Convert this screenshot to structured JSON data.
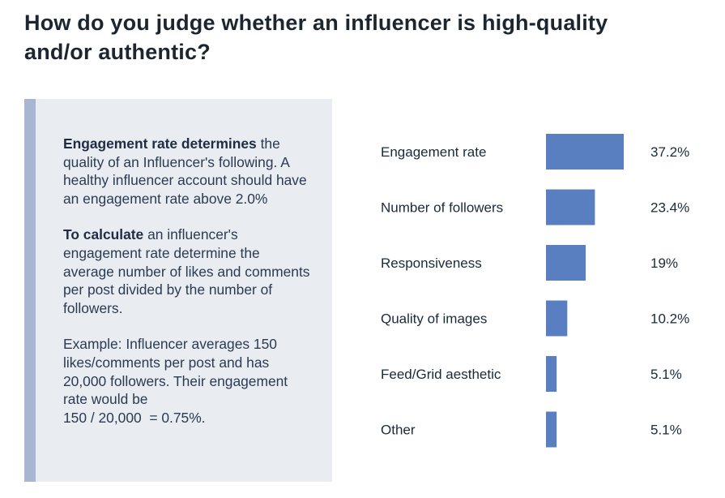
{
  "title": "How do you judge whether an influencer is high-quality\nand/or authentic?",
  "infobox": {
    "p1_bold": "Engagement rate determines",
    "p1_text": "the quality of an Influencer's following. A healthy influencer account should have an engagement rate above 2.0%",
    "p2_bold": "To calculate",
    "p2_text": "an influencer's engagement rate determine the average number of likes and comments per post divided by the number of followers.",
    "p3_lead": "Example:",
    "p3_text": "Influencer averages 150 likes/comments per post and has 20,000 followers. Their engagement rate would be",
    "p3_calc": "150 / 20,000  = 0.75%."
  },
  "colors": {
    "bar": "#5a7fc0",
    "panel": "#e9ecf1",
    "accent": "#a9b6d2"
  },
  "chart_data": {
    "type": "bar",
    "orientation": "horizontal",
    "categories": [
      "Engagement rate",
      "Number of followers",
      "Responsiveness",
      "Quality of images",
      "Feed/Grid aesthetic",
      "Other"
    ],
    "values": [
      37.2,
      23.4,
      19,
      10.2,
      5.1,
      5.1
    ],
    "value_labels": [
      "37.2%",
      "23.4%",
      "19%",
      "10.2%",
      "5.1%",
      "5.1%"
    ],
    "xlim": [
      0,
      37.2
    ],
    "grid": false,
    "legend": "none"
  }
}
